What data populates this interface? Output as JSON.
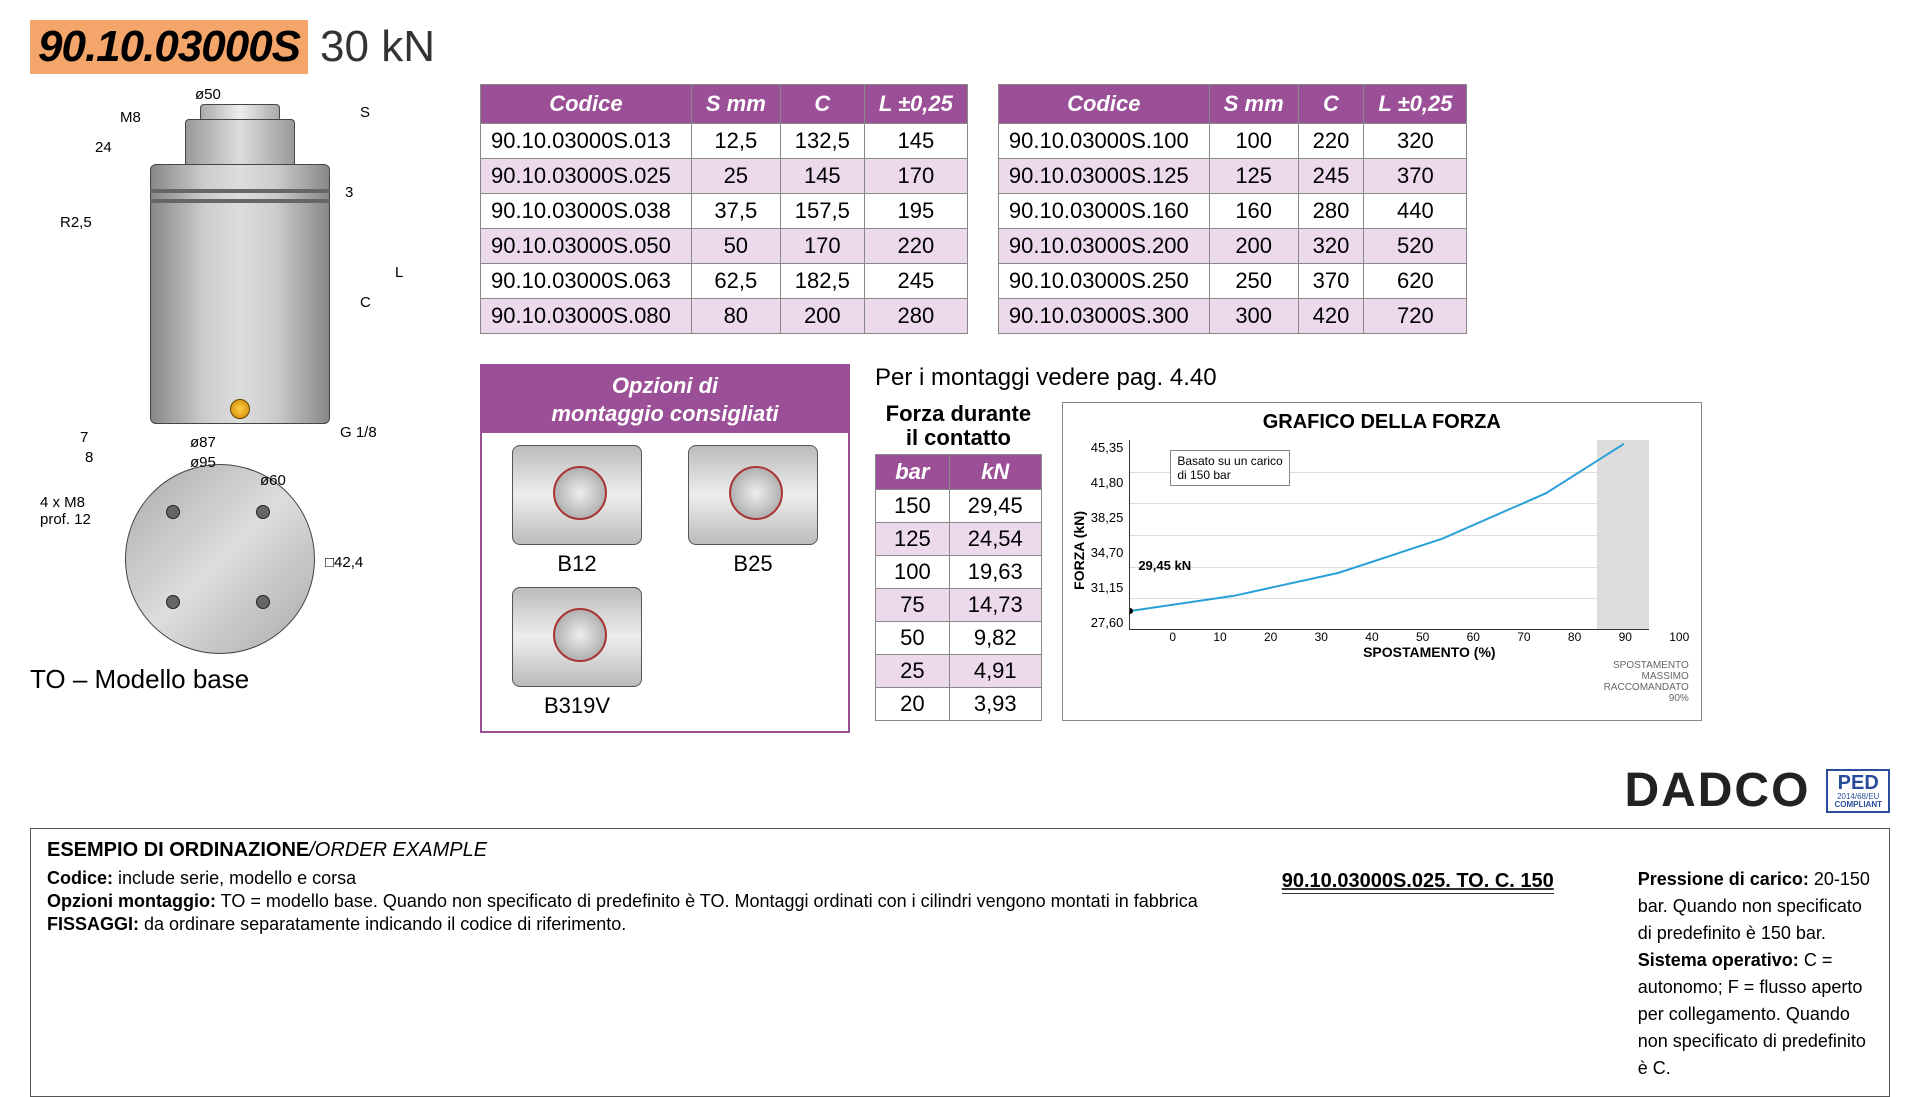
{
  "header": {
    "product_code": "90.10.03000S",
    "force_label": "30 kN",
    "code_bg_color": "#f4a66a"
  },
  "diagram": {
    "labels": {
      "top_diameter": "ø50",
      "thread_top": "M8",
      "s": "S",
      "dim_24": "24",
      "dim_3": "3",
      "r25": "R2,5",
      "c": "C",
      "l": "L",
      "dim_7": "7",
      "dim_8": "8",
      "d87": "ø87",
      "d95": "ø95",
      "port": "G 1/8",
      "bolts": "4 x M8\nprof. 12",
      "d60": "ø60",
      "sq": "□42,4"
    },
    "model_label": "TO – Modello base"
  },
  "spec_table": {
    "header_bg": "#9b4f96",
    "alt_row_bg": "#ecd9ec",
    "columns": [
      "Codice",
      "S mm",
      "C",
      "L ±0,25"
    ],
    "rows_left": [
      [
        "90.10.03000S.013",
        "12,5",
        "132,5",
        "145"
      ],
      [
        "90.10.03000S.025",
        "25",
        "145",
        "170"
      ],
      [
        "90.10.03000S.038",
        "37,5",
        "157,5",
        "195"
      ],
      [
        "90.10.03000S.050",
        "50",
        "170",
        "220"
      ],
      [
        "90.10.03000S.063",
        "62,5",
        "182,5",
        "245"
      ],
      [
        "90.10.03000S.080",
        "80",
        "200",
        "280"
      ]
    ],
    "rows_right": [
      [
        "90.10.03000S.100",
        "100",
        "220",
        "320"
      ],
      [
        "90.10.03000S.125",
        "125",
        "245",
        "370"
      ],
      [
        "90.10.03000S.160",
        "160",
        "280",
        "440"
      ],
      [
        "90.10.03000S.200",
        "200",
        "320",
        "520"
      ],
      [
        "90.10.03000S.250",
        "250",
        "370",
        "620"
      ],
      [
        "90.10.03000S.300",
        "300",
        "420",
        "720"
      ]
    ]
  },
  "mount": {
    "title_line1": "Opzioni di",
    "title_line2": "montaggio consigliati",
    "items": [
      "B12",
      "B25",
      "B319V"
    ]
  },
  "page_ref": "Per i montaggi vedere pag. 4.40",
  "force_table": {
    "title_line1": "Forza durante",
    "title_line2": "il contatto",
    "columns": [
      "bar",
      "kN"
    ],
    "rows": [
      [
        "150",
        "29,45"
      ],
      [
        "125",
        "24,54"
      ],
      [
        "100",
        "19,63"
      ],
      [
        "75",
        "14,73"
      ],
      [
        "50",
        "9,82"
      ],
      [
        "25",
        "4,91"
      ],
      [
        "20",
        "3,93"
      ]
    ]
  },
  "chart": {
    "title": "GRAFICO DELLA FORZA",
    "y_label": "FORZA (kN)",
    "x_label": "SPOSTAMENTO (%)",
    "y_ticks": [
      "45,35",
      "41,80",
      "38,25",
      "34,70",
      "31,15",
      "27,60"
    ],
    "x_ticks": [
      "0",
      "10",
      "20",
      "30",
      "40",
      "50",
      "60",
      "70",
      "80",
      "90",
      "100"
    ],
    "note": "Basato su un carico\ndi 150 bar",
    "start_point_label": "29,45 kN",
    "line_color": "#2aa0d8",
    "max_shade_pct": 10,
    "footnote": "SPOSTAMENTO\nMASSIMO\nRACCOMANDATO\n90%",
    "curve_points_pct": [
      {
        "x": 0,
        "y": 10
      },
      {
        "x": 20,
        "y": 18
      },
      {
        "x": 40,
        "y": 30
      },
      {
        "x": 60,
        "y": 48
      },
      {
        "x": 80,
        "y": 72
      },
      {
        "x": 95,
        "y": 98
      }
    ]
  },
  "brand": {
    "name": "DADCO",
    "ped_top": "PED",
    "ped_mid": "2014/68/EU",
    "ped_bot": "COMPLIANT"
  },
  "order": {
    "title_it": "ESEMPIO DI ORDINAZIONE",
    "title_en": "/ORDER EXAMPLE",
    "sample_code": "90.10.03000S.025. TO. C. 150",
    "left_rows": [
      {
        "label": "Codice:",
        "text": " include serie, modello e corsa"
      },
      {
        "label": "Opzioni montaggio:",
        "text": " TO = modello base. Quando non specificato di predefinito è TO. Montaggi ordinati con i cilindri vengono montati in fabbrica"
      },
      {
        "label": "FISSAGGI:",
        "text": " da ordinare separatamente indicando il codice di riferimento."
      }
    ],
    "right_rows": [
      {
        "label": "Pressione di carico:",
        "text": " 20-150 bar. Quando non specificato di predefinito è 150 bar."
      },
      {
        "label": "Sistema operativo:",
        "text": " C = autonomo; F = flusso aperto per collegamento. Quando non specificato di predefinito è C."
      }
    ]
  }
}
